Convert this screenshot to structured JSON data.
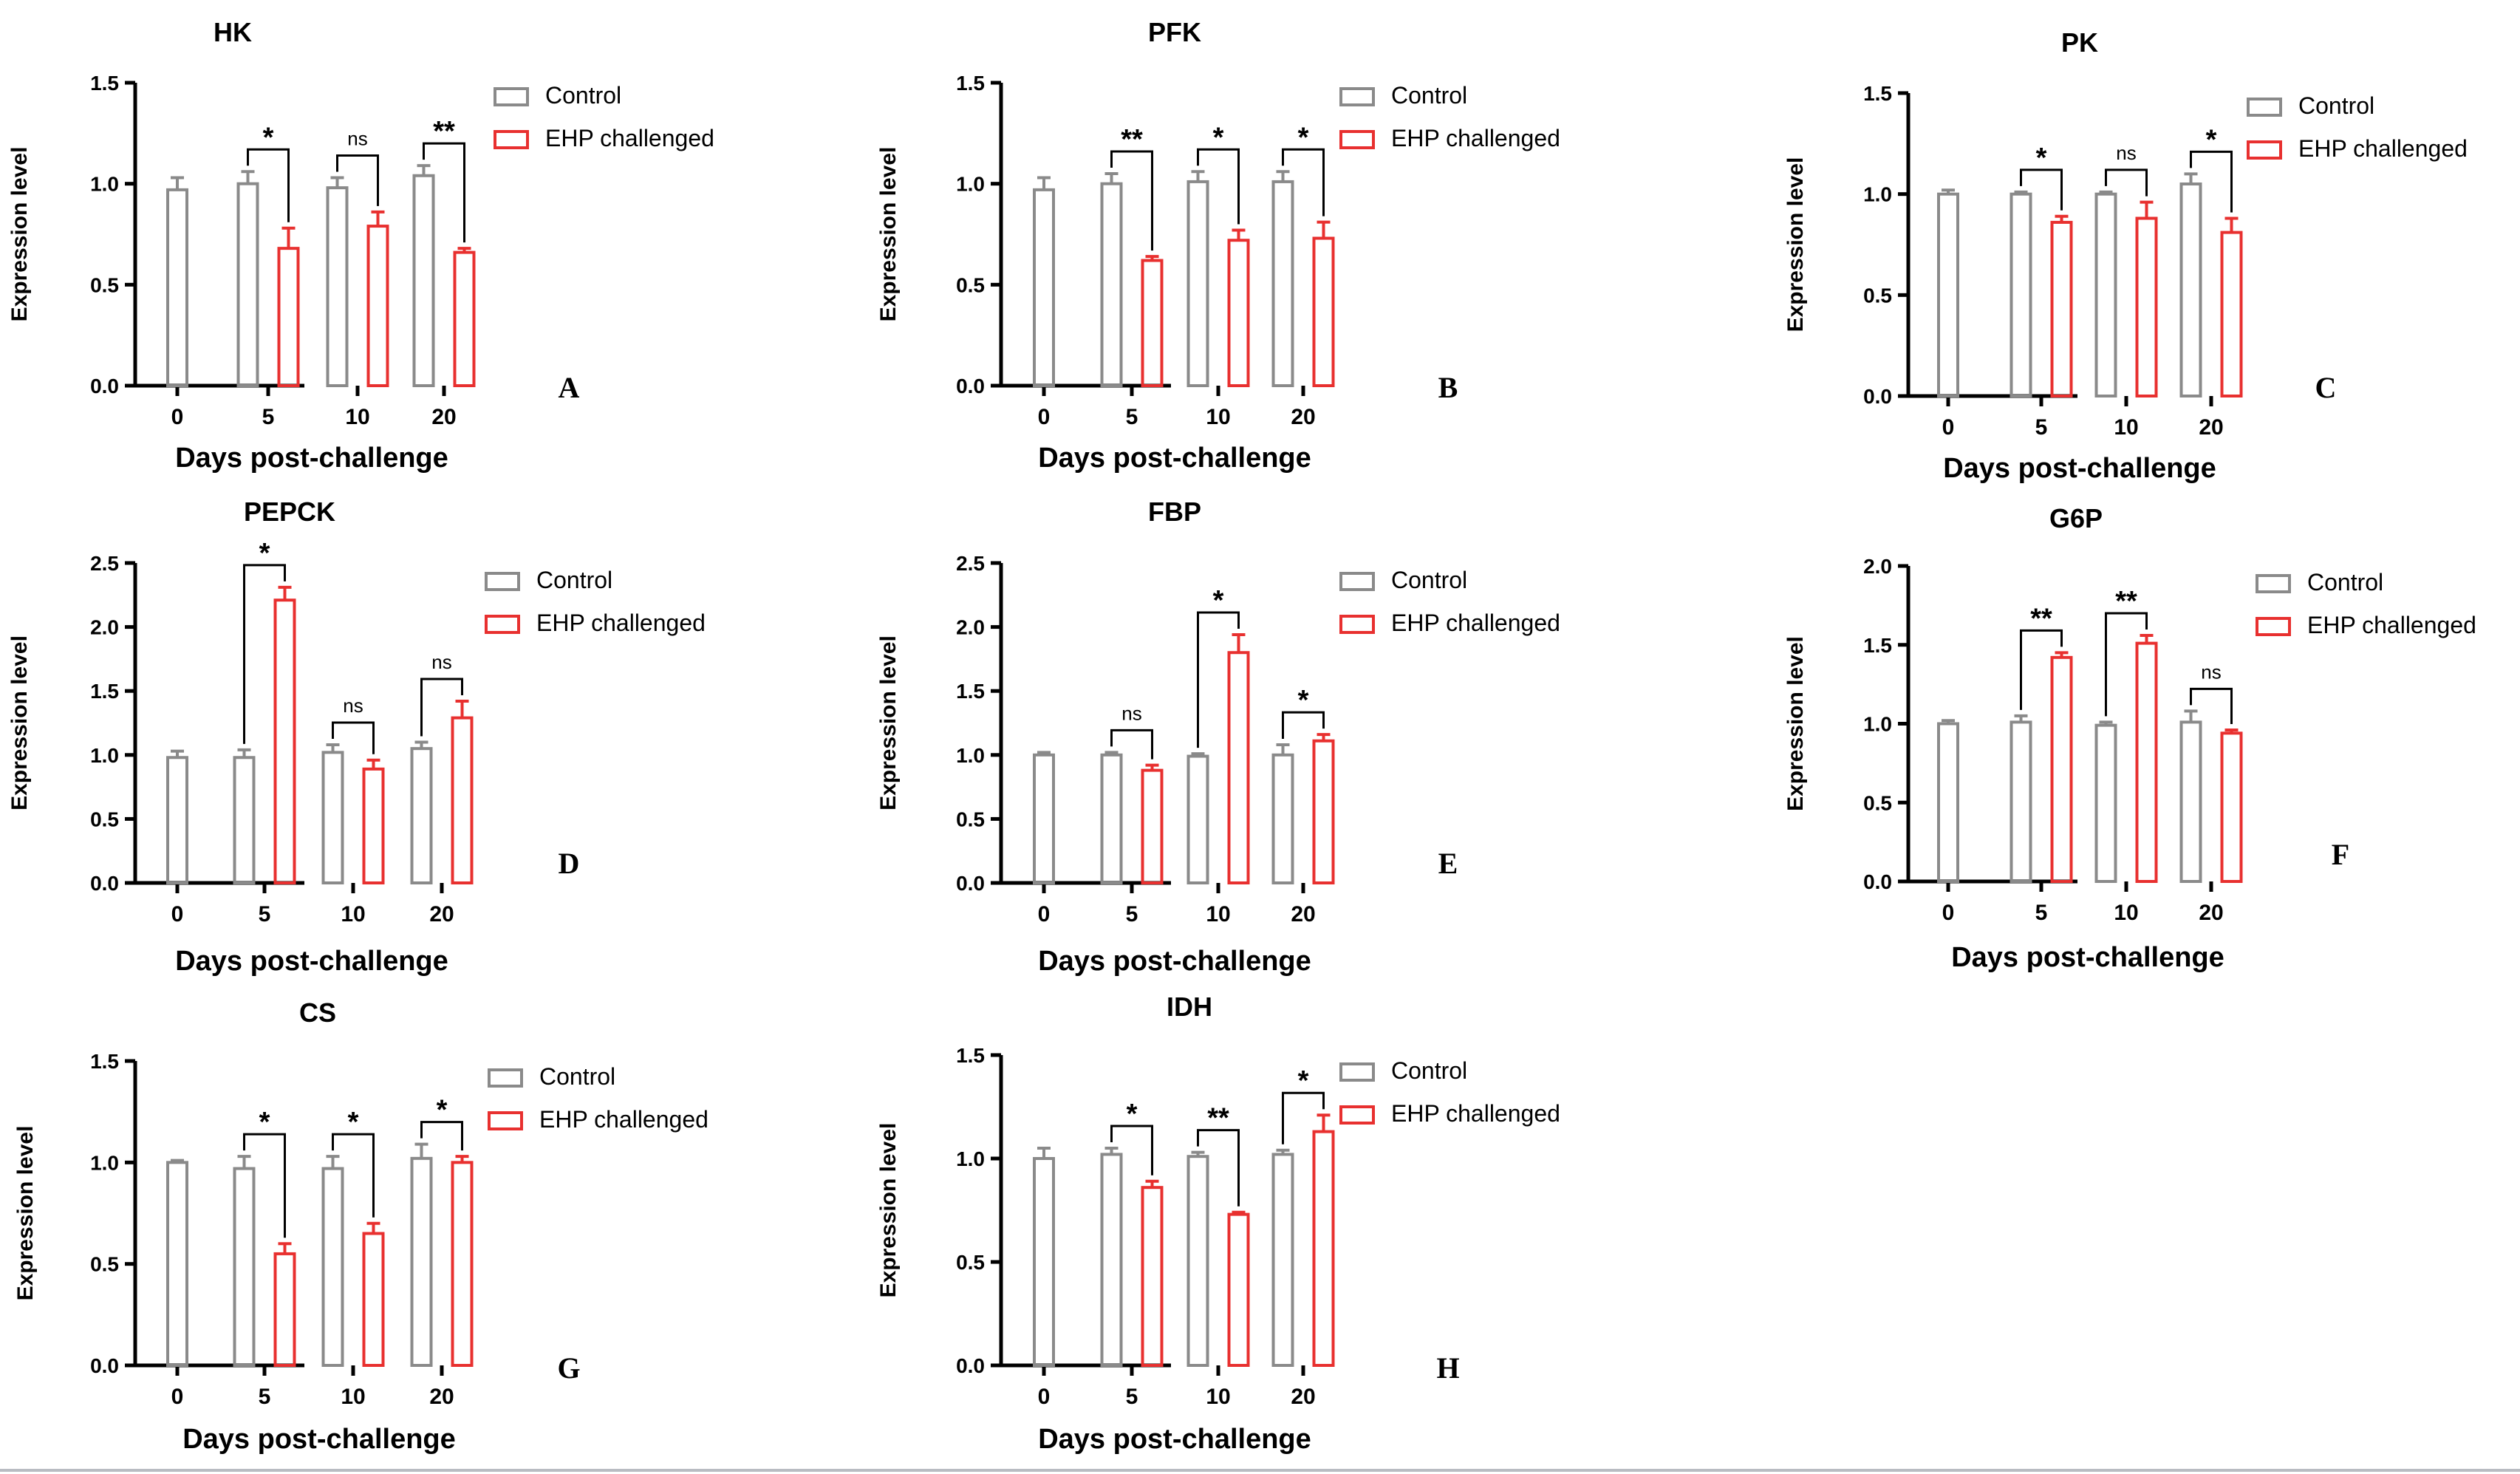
{
  "figure": {
    "colors": {
      "control": "#8a8a8a",
      "ehp": "#e8302f",
      "axis": "#000000",
      "background": "#ffffff"
    }
  },
  "chart_data": [
    {
      "type": "bar",
      "letter": "A",
      "title": "HK",
      "xlabel": "Days post-challenge",
      "ylabel": "Expression level",
      "categories": [
        "0",
        "5",
        "10",
        "20"
      ],
      "ylim": [
        0,
        1.5
      ],
      "yticks": [
        "0.0",
        "0.5",
        "1.0",
        "1.5"
      ],
      "legend": "top-right",
      "series": [
        {
          "name": "Control",
          "values": [
            0.97,
            1.0,
            0.98,
            1.04
          ],
          "errors": [
            0.06,
            0.06,
            0.05,
            0.05
          ]
        },
        {
          "name": "EHP challenged",
          "values": [
            null,
            0.68,
            0.79,
            0.66
          ],
          "errors": [
            null,
            0.1,
            0.07,
            0.02
          ]
        }
      ],
      "significance": [
        "",
        "*",
        "ns",
        "**"
      ]
    },
    {
      "type": "bar",
      "letter": "B",
      "title": "PFK",
      "xlabel": "Days post-challenge",
      "ylabel": "Expression level",
      "categories": [
        "0",
        "5",
        "10",
        "20"
      ],
      "ylim": [
        0,
        1.5
      ],
      "yticks": [
        "0.0",
        "0.5",
        "1.0",
        "1.5"
      ],
      "legend": "top-right",
      "series": [
        {
          "name": "Control",
          "values": [
            0.97,
            1.0,
            1.01,
            1.01
          ],
          "errors": [
            0.06,
            0.05,
            0.05,
            0.05
          ]
        },
        {
          "name": "EHP challenged",
          "values": [
            null,
            0.62,
            0.72,
            0.73
          ],
          "errors": [
            null,
            0.02,
            0.05,
            0.08
          ]
        }
      ],
      "significance": [
        "",
        "**",
        "*",
        "*"
      ]
    },
    {
      "type": "bar",
      "letter": "C",
      "title": "PK",
      "xlabel": "Days post-challenge",
      "ylabel": "Expression level",
      "categories": [
        "0",
        "5",
        "10",
        "20"
      ],
      "ylim": [
        0,
        1.5
      ],
      "yticks": [
        "0.0",
        "0.5",
        "1.0",
        "1.5"
      ],
      "legend": "top-right",
      "series": [
        {
          "name": "Control",
          "values": [
            1.0,
            1.0,
            1.0,
            1.05
          ],
          "errors": [
            0.02,
            0.01,
            0.01,
            0.05
          ]
        },
        {
          "name": "EHP challenged",
          "values": [
            null,
            0.86,
            0.88,
            0.81
          ],
          "errors": [
            null,
            0.03,
            0.08,
            0.07
          ]
        }
      ],
      "significance": [
        "",
        "*",
        "ns",
        "*"
      ]
    },
    {
      "type": "bar",
      "letter": "D",
      "title": "PEPCK",
      "xlabel": "Days post-challenge",
      "ylabel": "Expression level",
      "categories": [
        "0",
        "5",
        "10",
        "20"
      ],
      "ylim": [
        0,
        2.5
      ],
      "yticks": [
        "0.0",
        "0.5",
        "1.0",
        "1.5",
        "2.0",
        "2.5"
      ],
      "legend": "top-right",
      "series": [
        {
          "name": "Control",
          "values": [
            0.98,
            0.98,
            1.02,
            1.05
          ],
          "errors": [
            0.05,
            0.06,
            0.06,
            0.05
          ]
        },
        {
          "name": "EHP challenged",
          "values": [
            null,
            2.21,
            0.89,
            1.29
          ],
          "errors": [
            null,
            0.1,
            0.07,
            0.13
          ]
        }
      ],
      "significance": [
        "",
        "*",
        "ns",
        "ns"
      ]
    },
    {
      "type": "bar",
      "letter": "E",
      "title": "FBP",
      "xlabel": "Days post-challenge",
      "ylabel": "Expression level",
      "categories": [
        "0",
        "5",
        "10",
        "20"
      ],
      "ylim": [
        0,
        2.5
      ],
      "yticks": [
        "0.0",
        "0.5",
        "1.0",
        "1.5",
        "2.0",
        "2.5"
      ],
      "legend": "top-right",
      "series": [
        {
          "name": "Control",
          "values": [
            1.0,
            1.0,
            0.99,
            1.0
          ],
          "errors": [
            0.02,
            0.02,
            0.02,
            0.08
          ]
        },
        {
          "name": "EHP challenged",
          "values": [
            null,
            0.88,
            1.8,
            1.11
          ],
          "errors": [
            null,
            0.04,
            0.14,
            0.05
          ]
        }
      ],
      "significance": [
        "",
        "ns",
        "*",
        "*"
      ]
    },
    {
      "type": "bar",
      "letter": "F",
      "title": "G6P",
      "xlabel": "Days post-challenge",
      "ylabel": "Expression level",
      "categories": [
        "0",
        "5",
        "10",
        "20"
      ],
      "ylim": [
        0,
        2.0
      ],
      "yticks": [
        "0.0",
        "0.5",
        "1.0",
        "1.5",
        "2.0"
      ],
      "legend": "top-right",
      "series": [
        {
          "name": "Control",
          "values": [
            1.0,
            1.01,
            0.99,
            1.01
          ],
          "errors": [
            0.02,
            0.04,
            0.02,
            0.07
          ]
        },
        {
          "name": "EHP challenged",
          "values": [
            null,
            1.42,
            1.51,
            0.94
          ],
          "errors": [
            null,
            0.03,
            0.05,
            0.02
          ]
        }
      ],
      "significance": [
        "",
        "**",
        "**",
        "ns"
      ]
    },
    {
      "type": "bar",
      "letter": "G",
      "title": "CS",
      "xlabel": "Days post-challenge",
      "ylabel": "Expression level",
      "categories": [
        "0",
        "5",
        "10",
        "20"
      ],
      "ylim": [
        0,
        1.5
      ],
      "yticks": [
        "0.0",
        "0.5",
        "1.0",
        "1.5"
      ],
      "legend": "top-right",
      "series": [
        {
          "name": "Control",
          "values": [
            1.0,
            0.97,
            0.97,
            1.02
          ],
          "errors": [
            0.01,
            0.06,
            0.06,
            0.07
          ]
        },
        {
          "name": "EHP challenged",
          "values": [
            null,
            0.55,
            0.65,
            1.0
          ],
          "errors": [
            null,
            0.05,
            0.05,
            0.03
          ]
        }
      ],
      "significance": [
        "",
        "*",
        "*",
        "*"
      ]
    },
    {
      "type": "bar",
      "letter": "H",
      "title": "IDH",
      "xlabel": "Days post-challenge",
      "ylabel": "Expression level",
      "categories": [
        "0",
        "5",
        "10",
        "20"
      ],
      "ylim": [
        0,
        1.5
      ],
      "yticks": [
        "0.0",
        "0.5",
        "1.0",
        "1.5"
      ],
      "legend": "top-right",
      "series": [
        {
          "name": "Control",
          "values": [
            1.0,
            1.02,
            1.01,
            1.02
          ],
          "errors": [
            0.05,
            0.03,
            0.02,
            0.02
          ]
        },
        {
          "name": "EHP challenged",
          "values": [
            null,
            0.86,
            0.73,
            1.13
          ],
          "errors": [
            null,
            0.03,
            0.01,
            0.08
          ]
        }
      ],
      "significance": [
        "",
        "*",
        "**",
        "*"
      ]
    }
  ]
}
